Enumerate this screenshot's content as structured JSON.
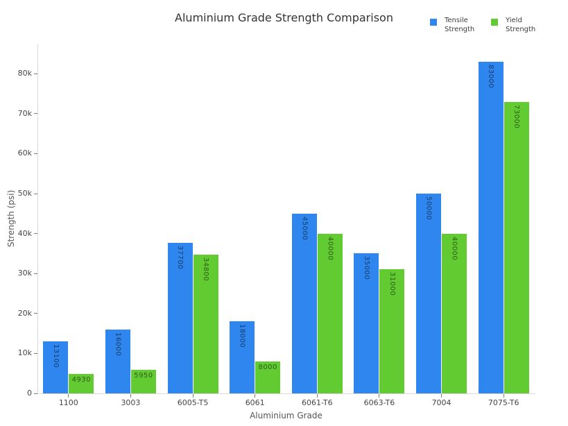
{
  "chart_data": {
    "type": "bar",
    "title": "Aluminium Grade Strength Comparison",
    "xlabel": "Aluminium Grade",
    "ylabel": "Strength (psi)",
    "categories": [
      "1100",
      "3003",
      "6005-T5",
      "6061",
      "6061-T6",
      "6063-T6",
      "7004",
      "7075-T6"
    ],
    "series": [
      {
        "name": "Tensile Strength",
        "color": "#2E86EE",
        "values": [
          13100,
          16000,
          37700,
          18000,
          45000,
          35000,
          50000,
          83000
        ]
      },
      {
        "name": "Yield Strength",
        "color": "#62CB31",
        "values": [
          4930,
          5950,
          34800,
          8000,
          40000,
          31000,
          40000,
          73000
        ]
      }
    ],
    "ylim": [
      0,
      87500
    ],
    "yticks": [
      {
        "value": 0,
        "label": "0"
      },
      {
        "value": 10000,
        "label": "10k"
      },
      {
        "value": 20000,
        "label": "20k"
      },
      {
        "value": 30000,
        "label": "30k"
      },
      {
        "value": 40000,
        "label": "40k"
      },
      {
        "value": 50000,
        "label": "50k"
      },
      {
        "value": 60000,
        "label": "60k"
      },
      {
        "value": 70000,
        "label": "70k"
      },
      {
        "value": 80000,
        "label": "80k"
      }
    ],
    "grid": false,
    "legend_position": "top-right",
    "bar_value_labels": true,
    "colors": {
      "axis_line": "#d9d9d9",
      "tick_mark": "#7a7a7a",
      "tick_text": "#444444",
      "axis_title_text": "#555555",
      "title_text": "#333333",
      "background": "#ffffff"
    }
  }
}
